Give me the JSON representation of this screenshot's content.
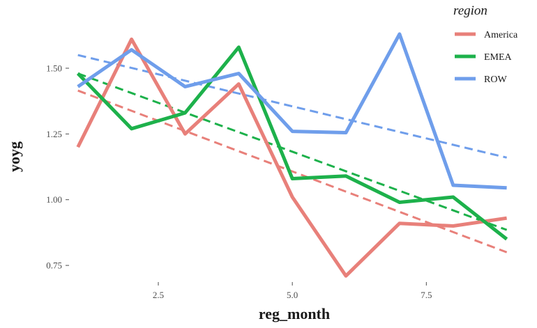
{
  "chart_data": {
    "type": "line",
    "xlabel": "reg_month",
    "ylabel": "yoyg",
    "xlim": [
      0.9,
      9.2
    ],
    "ylim": [
      0.7,
      1.68
    ],
    "x_ticks": [
      2.5,
      5.0,
      7.5
    ],
    "x_tick_labels": [
      "2.5",
      "5.0",
      "7.5"
    ],
    "y_ticks": [
      0.75,
      1.0,
      1.25,
      1.5
    ],
    "y_tick_labels": [
      "0.75",
      "1.00",
      "1.25",
      "1.50"
    ],
    "grid": false,
    "legend": {
      "title": "region",
      "position": "top-right"
    },
    "x": [
      1,
      2,
      3,
      4,
      5,
      6,
      7,
      8,
      9
    ],
    "series": [
      {
        "name": "America",
        "color": "#E8807A",
        "values": [
          1.2,
          1.61,
          1.25,
          1.44,
          1.01,
          0.71,
          0.91,
          0.9,
          0.93
        ],
        "trend": [
          1.415,
          0.8
        ]
      },
      {
        "name": "EMEA",
        "color": "#1DB14B",
        "values": [
          1.48,
          1.27,
          1.33,
          1.58,
          1.08,
          1.09,
          0.99,
          1.01,
          0.85
        ],
        "trend": [
          1.48,
          0.885
        ]
      },
      {
        "name": "ROW",
        "color": "#6F9EEB",
        "values": [
          1.43,
          1.57,
          1.43,
          1.48,
          1.26,
          1.255,
          1.63,
          1.055,
          1.045
        ],
        "trend": [
          1.55,
          1.16
        ]
      }
    ]
  }
}
